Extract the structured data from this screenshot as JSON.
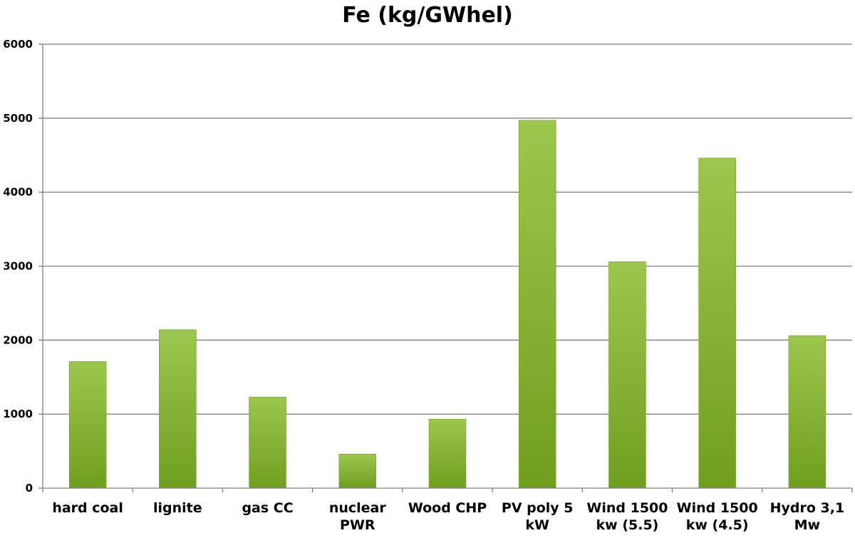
{
  "chart_data": {
    "type": "bar",
    "title": "Fe (kg/GWhel)",
    "xlabel": "",
    "ylabel": "",
    "ylim": [
      0,
      6000
    ],
    "y_ticks": [
      "0",
      "1000",
      "2000",
      "3000",
      "4000",
      "5000",
      "6000"
    ],
    "y_tick_values": [
      0,
      1000,
      2000,
      3000,
      4000,
      5000,
      6000
    ],
    "grid": true,
    "legend": "none",
    "categories": [
      "hard coal",
      "lignite",
      "gas CC",
      "nuclear PWR",
      "Wood CHP",
      "PV poly 5 kW",
      "Wind 1500 kw (5.5)",
      "Wind 1500 kw (4.5)",
      "Hydro 3,1 Mw"
    ],
    "category_lines": [
      [
        "hard coal"
      ],
      [
        "lignite"
      ],
      [
        "gas CC"
      ],
      [
        "nuclear",
        "PWR"
      ],
      [
        "Wood CHP"
      ],
      [
        "PV poly 5",
        "kW"
      ],
      [
        "Wind 1500",
        "kw (5.5)"
      ],
      [
        "Wind 1500",
        "kw (4.5)"
      ],
      [
        "Hydro 3,1",
        "Mw"
      ]
    ],
    "values": [
      1710,
      2140,
      1230,
      460,
      930,
      4970,
      3060,
      4460,
      2060
    ],
    "colors": {
      "bar_top": "#9cc74e",
      "bar_bottom": "#6f9f1f",
      "bar_edge": "#7aa82a",
      "grid": "#808080",
      "text": "#000000"
    }
  }
}
